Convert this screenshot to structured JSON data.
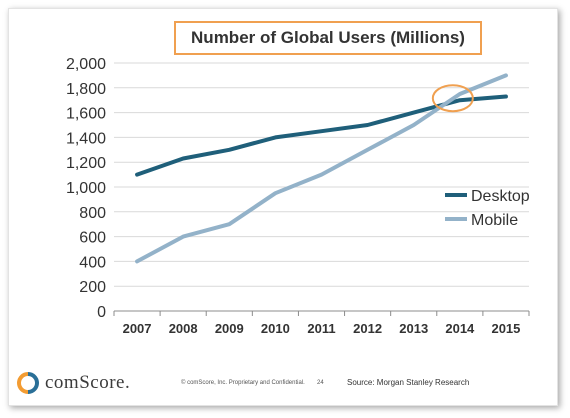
{
  "chart_data": {
    "type": "line",
    "title": "Number of Global Users (Millions)",
    "categories": [
      "2007",
      "2008",
      "2009",
      "2010",
      "2011",
      "2012",
      "2013",
      "2014",
      "2015"
    ],
    "series": [
      {
        "name": "Desktop",
        "color": "#1f5f7a",
        "values": [
          1100,
          1230,
          1300,
          1400,
          1450,
          1500,
          1600,
          1700,
          1730
        ]
      },
      {
        "name": "Mobile",
        "color": "#93b2c9",
        "values": [
          400,
          600,
          700,
          950,
          1100,
          1300,
          1500,
          1750,
          1900
        ]
      }
    ],
    "ylim": [
      0,
      2000
    ],
    "yticks": [
      0,
      200,
      400,
      600,
      800,
      1000,
      1200,
      1400,
      1600,
      1800,
      2000
    ],
    "ytick_labels": [
      "0",
      "200",
      "400",
      "600",
      "800",
      "1,000",
      "1,200",
      "1,400",
      "1,600",
      "1,800",
      "2,000"
    ],
    "grid": true,
    "legend_position": "right",
    "highlight": {
      "x": "2014",
      "y": 1700,
      "color": "#f0a050"
    }
  },
  "footer": {
    "logo_text": "comScore.",
    "copyright": "© comScore, Inc.  Proprietary and Confidential.",
    "page_number": "24",
    "source": "Source: Morgan Stanley Research"
  },
  "colors": {
    "accent": "#f0a050",
    "logo_orange": "#f39c32",
    "logo_blue": "#2a6f97"
  }
}
